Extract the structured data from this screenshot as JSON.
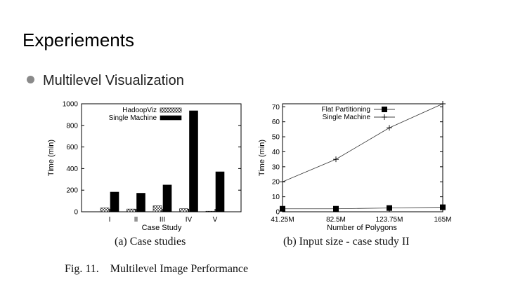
{
  "slide": {
    "title": "Experiements",
    "bullet": "Multilevel Visualization"
  },
  "figure": {
    "caption_a": "(a) Case studies",
    "caption_b": "(b) Input size - case study II",
    "figure_caption": "Fig. 11.    Multilevel Image Performance"
  },
  "chart_data": [
    {
      "type": "bar",
      "categories": [
        "I",
        "II",
        "III",
        "IV",
        "V"
      ],
      "series": [
        {
          "name": "HadoopViz",
          "values": [
            35,
            25,
            55,
            28,
            5
          ],
          "pattern": "checkered",
          "color": "#999999"
        },
        {
          "name": "Single Machine",
          "values": [
            182,
            172,
            248,
            935,
            370
          ],
          "color": "#000000"
        }
      ],
      "xlabel": "Case Study",
      "ylabel": "Time (min)",
      "ylim": [
        0,
        1000
      ],
      "yticks": [
        "0",
        "200",
        "400",
        "600",
        "800",
        "1000"
      ],
      "grid": false,
      "legend_position": "top-right"
    },
    {
      "type": "line",
      "x": [
        "41.25M",
        "82.5M",
        "123.75M",
        "165M"
      ],
      "series": [
        {
          "name": "Flat Partitioning",
          "values": [
            2,
            2,
            2.5,
            3
          ],
          "marker": "filled-square"
        },
        {
          "name": "Single Machine",
          "values": [
            20,
            35,
            56,
            72
          ],
          "marker": "plus"
        }
      ],
      "xlabel": "Number of Polygons",
      "ylabel": "Time (min)",
      "ylim": [
        0,
        72
      ],
      "yticks": [
        "0",
        "10",
        "20",
        "30",
        "40",
        "50",
        "60",
        "70"
      ],
      "grid": false,
      "legend_position": "top-left"
    }
  ]
}
